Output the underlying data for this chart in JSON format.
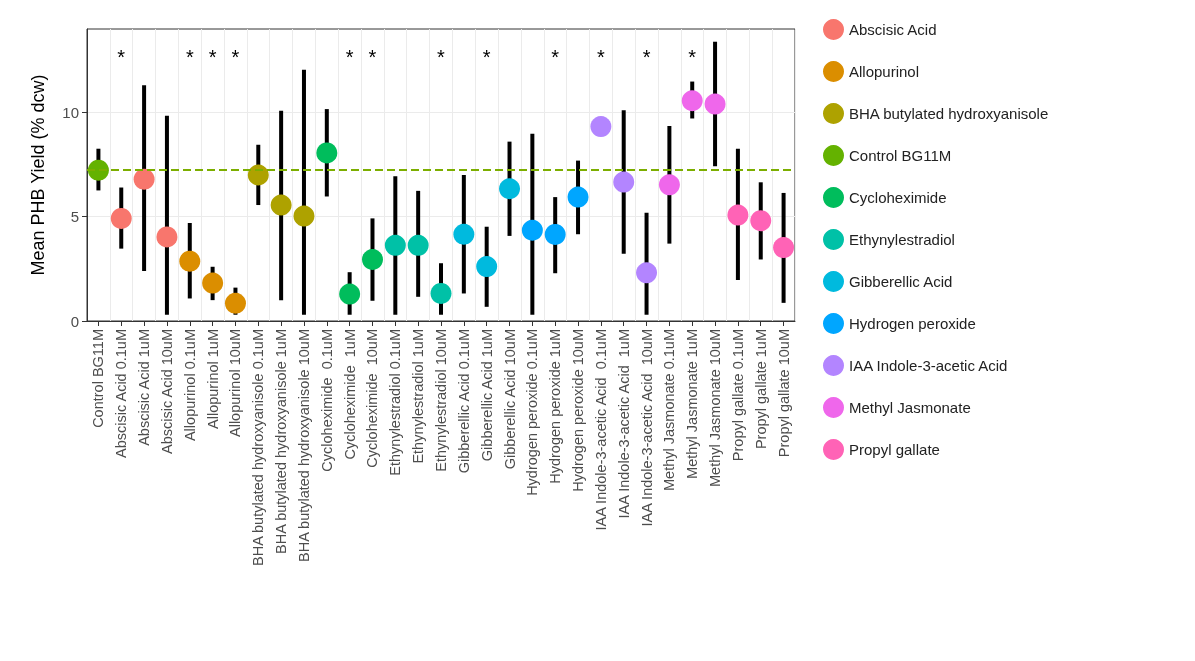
{
  "chart_data": {
    "type": "scatter",
    "ylabel": "Mean PHB Yield (% dcw)",
    "categories": [
      "Control BG11M",
      "Abscisic Acid 0.1uM",
      "Abscisic Acid 1uM",
      "Abscisic Acid 10uM",
      "Allopurinol 0.1uM",
      "Allopurinol 1uM",
      "Allopurinol 10uM",
      "BHA butylated hydroxyanisole 0.1uM",
      "BHA butylated hydroxyanisole 1uM",
      "BHA butylated hydroxyanisole 10uM",
      "Cycloheximide  0.1uM",
      "Cycloheximide  1uM",
      "Cycloheximide  10uM",
      "Ethynylestradiol 0.1uM",
      "Ethynylestradiol 1uM",
      "Ethynylestradiol 10uM",
      "Gibberellic Acid 0.1uM",
      "Gibberellic Acid 1uM",
      "Gibberellic Acid 10uM",
      "Hydrogen peroxide 0.1uM",
      "Hydrogen peroxide 1uM",
      "Hydrogen peroxide 10uM",
      "IAA Indole-3-acetic Acid  0.1uM",
      "IAA Indole-3-acetic Acid  1uM",
      "IAA Indole-3-acetic Acid  10uM",
      "Methyl Jasmonate 0.1uM",
      "Methyl Jasmonate 1uM",
      "Methyl Jasmonate 10uM",
      "Propyl gallate 0.1uM",
      "Propyl gallate 1uM",
      "Propyl gallate 10uM"
    ],
    "series": [
      {
        "name": "Abscisic Acid",
        "color": "#f8766d",
        "x": [
          "Abscisic Acid 0.1uM",
          "Abscisic Acid 1uM",
          "Abscisic Acid 10uM"
        ],
        "values": [
          4.92,
          6.8,
          4.03
        ],
        "errors": [
          [
            3.47,
            6.4
          ],
          [
            2.4,
            11.3
          ],
          [
            0.3,
            9.84
          ]
        ]
      },
      {
        "name": "Allopurinol",
        "color": "#db8e00",
        "x": [
          "Allopurinol 0.1uM",
          "Allopurinol 1uM",
          "Allopurinol 10uM"
        ],
        "values": [
          2.87,
          1.82,
          0.85
        ],
        "errors": [
          [
            1.08,
            4.7
          ],
          [
            1.0,
            2.6
          ],
          [
            0.3,
            1.6
          ]
        ]
      },
      {
        "name": "BHA butylated hydroxyanisole",
        "color": "#aea200",
        "x": [
          "BHA butylated hydroxyanisole 0.1uM",
          "BHA butylated hydroxyanisole 1uM",
          "BHA butylated hydroxyanisole 10uM"
        ],
        "values": [
          7.0,
          5.56,
          5.03
        ],
        "errors": [
          [
            5.56,
            8.45
          ],
          [
            1.0,
            10.08
          ],
          [
            0.3,
            12.05
          ]
        ]
      },
      {
        "name": "Control BG11M",
        "color": "#64b200",
        "x": [
          "Control BG11M"
        ],
        "values": [
          7.23
        ],
        "errors": [
          [
            6.26,
            8.26
          ]
        ]
      },
      {
        "name": "Cycloheximide",
        "color": "#00bd5c",
        "x": [
          "Cycloheximide  0.1uM",
          "Cycloheximide  1uM",
          "Cycloheximide  10uM"
        ],
        "values": [
          8.06,
          1.29,
          2.95
        ],
        "errors": [
          [
            5.97,
            10.16
          ],
          [
            0.3,
            2.34
          ],
          [
            0.97,
            4.92
          ]
        ]
      },
      {
        "name": "Ethynylestradiol",
        "color": "#00c1a7",
        "x": [
          "Ethynylestradiol 0.1uM",
          "Ethynylestradiol 1uM",
          "Ethynylestradiol 10uM"
        ],
        "values": [
          3.63,
          3.63,
          1.32
        ],
        "errors": [
          [
            0.3,
            6.94
          ],
          [
            1.16,
            6.24
          ],
          [
            0.3,
            2.77
          ]
        ]
      },
      {
        "name": "Gibberellic Acid",
        "color": "#00bade",
        "x": [
          "Gibberellic Acid 0.1uM",
          "Gibberellic Acid 1uM",
          "Gibberellic Acid 10uM"
        ],
        "values": [
          4.16,
          2.61,
          6.34
        ],
        "errors": [
          [
            1.32,
            7.0
          ],
          [
            0.68,
            4.52
          ],
          [
            4.08,
            8.6
          ]
        ]
      },
      {
        "name": "Hydrogen peroxide",
        "color": "#00a6ff",
        "x": [
          "Hydrogen peroxide 0.1uM",
          "Hydrogen peroxide 1uM",
          "Hydrogen peroxide 10uM"
        ],
        "values": [
          4.35,
          4.15,
          5.94
        ],
        "errors": [
          [
            0.3,
            8.98
          ],
          [
            2.29,
            5.94
          ],
          [
            4.16,
            7.69
          ]
        ]
      },
      {
        "name": "IAA Indole-3-acetic Acid",
        "color": "#b385ff",
        "x": [
          "IAA Indole-3-acetic Acid  0.1uM",
          "IAA Indole-3-acetic Acid  1uM",
          "IAA Indole-3-acetic Acid  10uM"
        ],
        "values": [
          9.32,
          6.66,
          2.31
        ],
        "errors": [
          null,
          [
            3.23,
            10.11
          ],
          [
            0.3,
            5.19
          ]
        ]
      },
      {
        "name": "Methyl Jasmonate",
        "color": "#ef67eb",
        "x": [
          "Methyl Jasmonate 0.1uM",
          "Methyl Jasmonate 1uM",
          "Methyl Jasmonate 10uM"
        ],
        "values": [
          6.53,
          10.56,
          10.4
        ],
        "errors": [
          [
            3.71,
            9.35
          ],
          [
            9.71,
            11.48
          ],
          [
            7.42,
            13.39
          ]
        ]
      },
      {
        "name": "Propyl gallate",
        "color": "#ff63b6",
        "x": [
          "Propyl gallate 0.1uM",
          "Propyl gallate 1uM",
          "Propyl gallate 10uM"
        ],
        "values": [
          5.08,
          4.81,
          3.52
        ],
        "errors": [
          [
            1.97,
            8.26
          ],
          [
            2.95,
            6.65
          ],
          [
            0.87,
            6.14
          ]
        ]
      }
    ],
    "ylim": [
      0,
      14
    ],
    "yticks": [
      0,
      5,
      10
    ],
    "grid": true,
    "legend": "right",
    "marker": "circle",
    "ref_lines": [
      {
        "axis": "y",
        "value": 7.23,
        "color": "#7cae00",
        "line_style": "dashed"
      }
    ],
    "annotations": [
      "*",
      "*",
      "*",
      "*",
      "*",
      "*",
      "*",
      "*",
      "*",
      "*",
      "*",
      "*"
    ]
  }
}
